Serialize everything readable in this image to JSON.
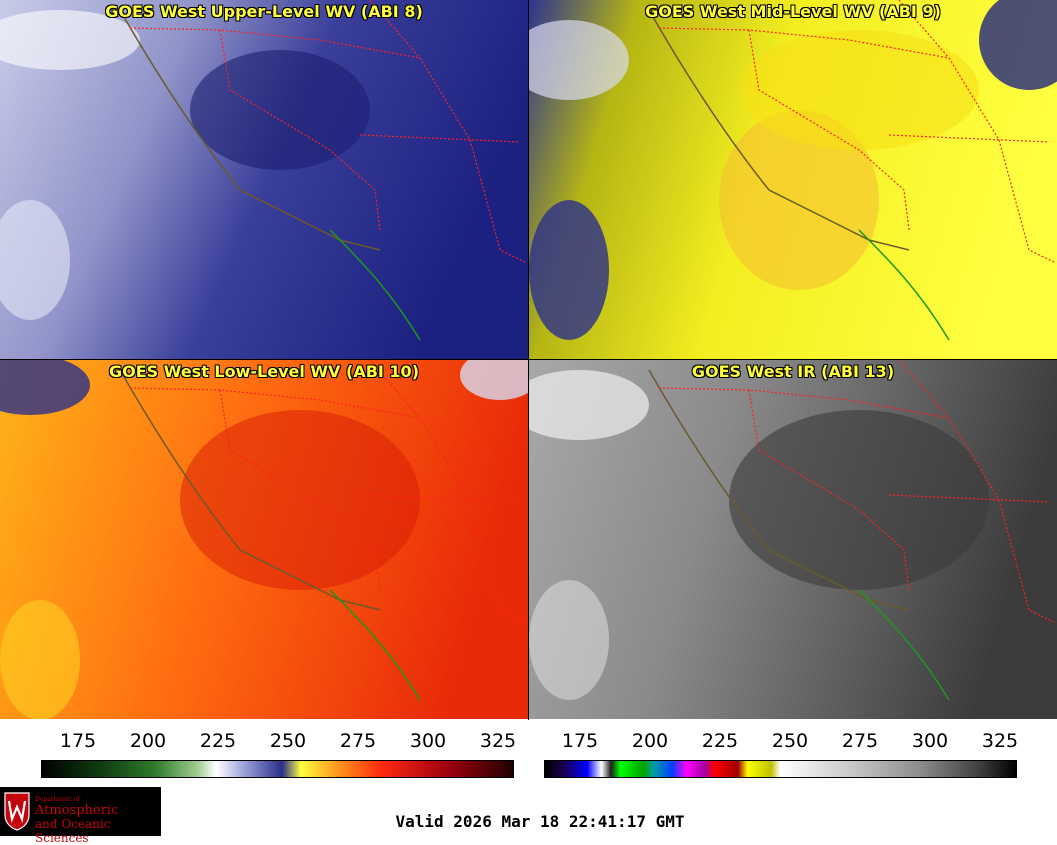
{
  "panels": [
    {
      "title": "GOES West Upper-Level WV (ABI 8)"
    },
    {
      "title": "GOES West Mid-Level WV (ABI 9)"
    },
    {
      "title": "GOES West Low-Level WV (ABI 10)"
    },
    {
      "title": "GOES West IR (ABI 13)"
    }
  ],
  "scales": {
    "wv_ticks": [
      "175",
      "200",
      "225",
      "250",
      "275",
      "300",
      "325"
    ],
    "ir_ticks": [
      "175",
      "200",
      "225",
      "250",
      "275",
      "300",
      "325"
    ]
  },
  "logo": {
    "line1": "Department of",
    "line2": "Atmospheric",
    "line3": "and Oceanic Sciences"
  },
  "valid_time": "Valid 2026 Mar 18 22:41:17 GMT",
  "colors": {
    "state_border": "#ff2020",
    "coastline": "#6b5a2a",
    "mexico_coast": "#1a9a1a",
    "title_text": "#ffff3a"
  }
}
